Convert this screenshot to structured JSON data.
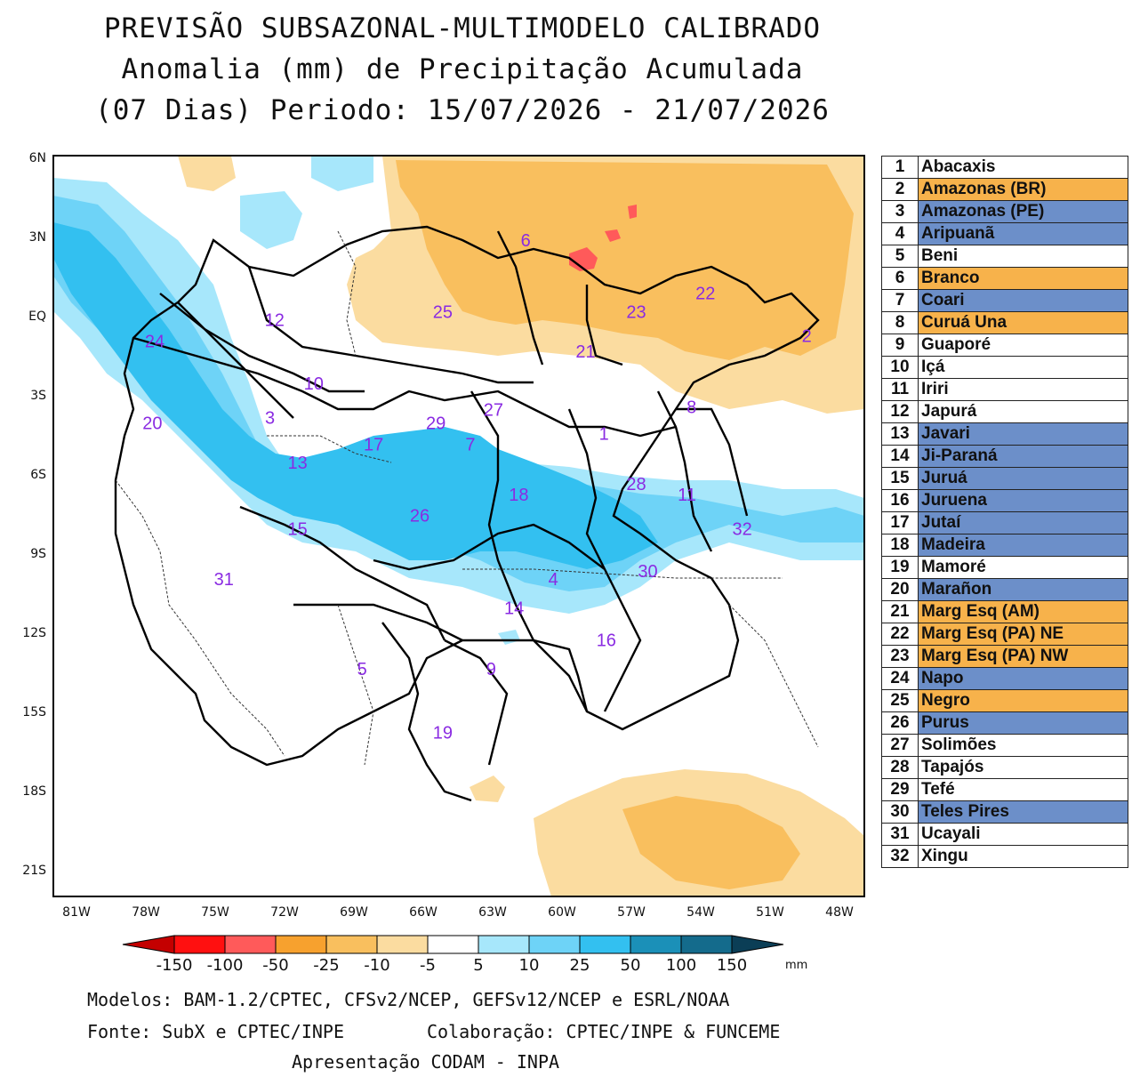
{
  "title": {
    "line1": "PREVISÃO SUBSAZONAL-MULTIMODELO CALIBRADO",
    "line2": "Anomalia (mm) de Precipitação Acumulada",
    "line3": "(07 Dias) Periodo: 15/07/2026 - 21/07/2026"
  },
  "map": {
    "lat_ticks": [
      "6N",
      "3N",
      "EQ",
      "3S",
      "6S",
      "9S",
      "12S",
      "15S",
      "18S",
      "21S"
    ],
    "lon_ticks": [
      "81W",
      "78W",
      "75W",
      "72W",
      "69W",
      "66W",
      "63W",
      "60W",
      "57W",
      "54W",
      "51W",
      "48W"
    ],
    "extent": {
      "lon_min": -81.9,
      "lon_max": -46.7,
      "lat_min": -22,
      "lat_max": 6
    },
    "basin_labels": [
      {
        "n": "1",
        "lon": -58.0,
        "lat": -4.5
      },
      {
        "n": "2",
        "lon": -49.2,
        "lat": -0.8
      },
      {
        "n": "3",
        "lon": -72.5,
        "lat": -3.9
      },
      {
        "n": "4",
        "lon": -60.2,
        "lat": -10.0
      },
      {
        "n": "5",
        "lon": -68.5,
        "lat": -13.4
      },
      {
        "n": "6",
        "lon": -61.4,
        "lat": 2.8
      },
      {
        "n": "7",
        "lon": -63.8,
        "lat": -4.9
      },
      {
        "n": "8",
        "lon": -54.2,
        "lat": -3.5
      },
      {
        "n": "9",
        "lon": -62.9,
        "lat": -13.4
      },
      {
        "n": "10",
        "lon": -70.6,
        "lat": -2.6
      },
      {
        "n": "11",
        "lon": -54.4,
        "lat": -6.8
      },
      {
        "n": "12",
        "lon": -72.3,
        "lat": -0.2
      },
      {
        "n": "13",
        "lon": -71.3,
        "lat": -5.6
      },
      {
        "n": "14",
        "lon": -61.9,
        "lat": -11.1
      },
      {
        "n": "15",
        "lon": -71.3,
        "lat": -8.1
      },
      {
        "n": "16",
        "lon": -57.9,
        "lat": -12.3
      },
      {
        "n": "17",
        "lon": -68.0,
        "lat": -4.9
      },
      {
        "n": "18",
        "lon": -61.7,
        "lat": -6.8
      },
      {
        "n": "19",
        "lon": -65.0,
        "lat": -15.8
      },
      {
        "n": "20",
        "lon": -77.6,
        "lat": -4.1
      },
      {
        "n": "21",
        "lon": -58.8,
        "lat": -1.4
      },
      {
        "n": "22",
        "lon": -53.6,
        "lat": 0.8
      },
      {
        "n": "23",
        "lon": -56.6,
        "lat": 0.1
      },
      {
        "n": "24",
        "lon": -77.5,
        "lat": -1.0
      },
      {
        "n": "25",
        "lon": -65.0,
        "lat": 0.1
      },
      {
        "n": "26",
        "lon": -66.0,
        "lat": -7.6
      },
      {
        "n": "27",
        "lon": -62.8,
        "lat": -3.6
      },
      {
        "n": "28",
        "lon": -56.6,
        "lat": -6.4
      },
      {
        "n": "29",
        "lon": -65.3,
        "lat": -4.1
      },
      {
        "n": "30",
        "lon": -56.1,
        "lat": -9.7
      },
      {
        "n": "31",
        "lon": -74.5,
        "lat": -10.0
      },
      {
        "n": "32",
        "lon": -52.0,
        "lat": -8.1
      }
    ]
  },
  "legend": [
    {
      "n": "1",
      "name": "Abacaxis",
      "color": "#ffffff"
    },
    {
      "n": "2",
      "name": "Amazonas (BR)",
      "color": "#f7b24b"
    },
    {
      "n": "3",
      "name": "Amazonas (PE)",
      "color": "#6c8fc9"
    },
    {
      "n": "4",
      "name": "Aripuanã",
      "color": "#6c8fc9"
    },
    {
      "n": "5",
      "name": "Beni",
      "color": "#ffffff"
    },
    {
      "n": "6",
      "name": "Branco",
      "color": "#f7b24b"
    },
    {
      "n": "7",
      "name": "Coari",
      "color": "#6c8fc9"
    },
    {
      "n": "8",
      "name": "Curuá Una",
      "color": "#f7b24b"
    },
    {
      "n": "9",
      "name": "Guaporé",
      "color": "#ffffff"
    },
    {
      "n": "10",
      "name": "Içá",
      "color": "#ffffff"
    },
    {
      "n": "11",
      "name": "Iriri",
      "color": "#ffffff"
    },
    {
      "n": "12",
      "name": "Japurá",
      "color": "#ffffff"
    },
    {
      "n": "13",
      "name": "Javari",
      "color": "#6c8fc9"
    },
    {
      "n": "14",
      "name": "Ji-Paraná",
      "color": "#6c8fc9"
    },
    {
      "n": "15",
      "name": "Juruá",
      "color": "#6c8fc9"
    },
    {
      "n": "16",
      "name": "Juruena",
      "color": "#6c8fc9"
    },
    {
      "n": "17",
      "name": "Jutaí",
      "color": "#6c8fc9"
    },
    {
      "n": "18",
      "name": "Madeira",
      "color": "#6c8fc9"
    },
    {
      "n": "19",
      "name": "Mamoré",
      "color": "#ffffff"
    },
    {
      "n": "20",
      "name": "Marañon",
      "color": "#6c8fc9"
    },
    {
      "n": "21",
      "name": "Marg Esq (AM)",
      "color": "#f7b24b"
    },
    {
      "n": "22",
      "name": "Marg Esq (PA) NE",
      "color": "#f7b24b"
    },
    {
      "n": "23",
      "name": "Marg Esq (PA) NW",
      "color": "#f7b24b"
    },
    {
      "n": "24",
      "name": "Napo",
      "color": "#6c8fc9"
    },
    {
      "n": "25",
      "name": "Negro",
      "color": "#f7b24b"
    },
    {
      "n": "26",
      "name": "Purus",
      "color": "#6c8fc9"
    },
    {
      "n": "27",
      "name": "Solimões",
      "color": "#ffffff"
    },
    {
      "n": "28",
      "name": "Tapajós",
      "color": "#ffffff"
    },
    {
      "n": "29",
      "name": "Tefé",
      "color": "#ffffff"
    },
    {
      "n": "30",
      "name": "Teles Pires",
      "color": "#6c8fc9"
    },
    {
      "n": "31",
      "name": "Ucayali",
      "color": "#ffffff"
    },
    {
      "n": "32",
      "name": "Xingu",
      "color": "#ffffff"
    }
  ],
  "colorbar": {
    "labels": [
      "-150",
      "-100",
      "-50",
      "-25",
      "-10",
      "-5",
      "5",
      "10",
      "25",
      "50",
      "100",
      "150"
    ],
    "colors": [
      "#ff1010",
      "#ff5a5a",
      "#f7a12e",
      "#f9bf5e",
      "#fbdca0",
      "#ffffff",
      "#a7e7fb",
      "#6ed3f7",
      "#33c0f0",
      "#1b90b8",
      "#146b8c"
    ],
    "low_end_color": "#c40000",
    "high_end_color": "#0b3e56",
    "unit": "mm"
  },
  "footer": {
    "models": "Modelos: BAM-1.2/CPTEC, CFSv2/NCEP, GEFSv12/NCEP e ESRL/NOAA",
    "source": "Fonte: SubX e CPTEC/INPE",
    "collab": "Colaboração: CPTEC/INPE & FUNCEME",
    "presentation": "Apresentação CODAM - INPA"
  }
}
